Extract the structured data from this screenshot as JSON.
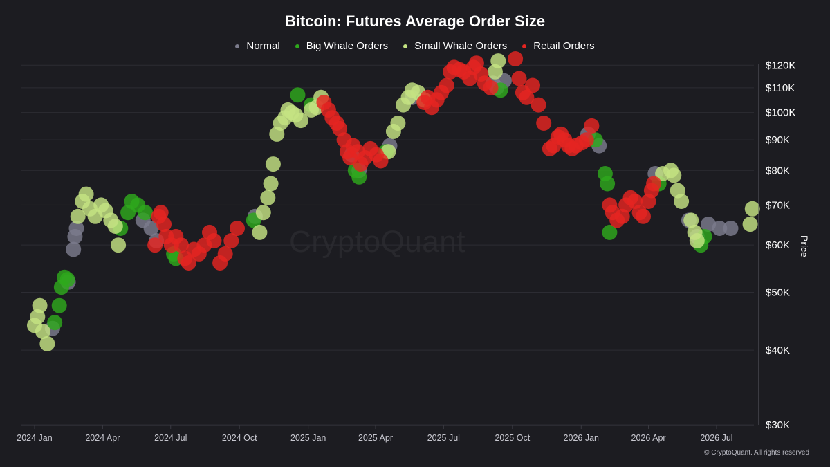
{
  "title": "Bitcoin: Futures Average Order Size",
  "legend": [
    {
      "label": "Normal",
      "color": "#7b7b8c"
    },
    {
      "label": "Big Whale Orders",
      "color": "#2ea81c"
    },
    {
      "label": "Small Whale Orders",
      "color": "#c4e382"
    },
    {
      "label": "Retail Orders",
      "color": "#e52521"
    }
  ],
  "watermark": "CryptoQuant",
  "footer": "© CryptoQuant. All rights reserved",
  "chart_data": {
    "type": "scatter",
    "title": "Bitcoin: Futures Average Order Size",
    "ylabel": "Price",
    "yscale": "log",
    "ylim": [
      30000,
      130000
    ],
    "y_ticks": [
      120000,
      110000,
      100000,
      90000,
      80000,
      70000,
      60000,
      50000,
      40000,
      30000
    ],
    "y_tick_labels": [
      "$120K",
      "$110K",
      "$100K",
      "$90K",
      "$80K",
      "$70K",
      "$60K",
      "$50K",
      "$40K",
      "$30K"
    ],
    "x_tick_labels": [
      "2024 Jan",
      "2024 Apr",
      "2024 Jul",
      "2024 Oct",
      "2025 Jan",
      "2025 Apr",
      "2025 Jul",
      "2025 Oct",
      "2026 Jan",
      "2026 Apr",
      "2026 Jul"
    ],
    "xlim": [
      "2024-01-01",
      "2026-08-20"
    ],
    "grid": true,
    "legend_position": "top-center",
    "series": [
      {
        "name": "Normal",
        "color": "#7b7b8c",
        "points": [
          [
            "2024-01-25",
            43500
          ],
          [
            "2024-02-15",
            52000
          ],
          [
            "2024-02-22",
            59000
          ],
          [
            "2024-02-24",
            62000
          ],
          [
            "2024-02-26",
            64000
          ],
          [
            "2024-05-25",
            66000
          ],
          [
            "2024-06-05",
            64000
          ],
          [
            "2024-06-12",
            61000
          ],
          [
            "2024-10-22",
            67000
          ],
          [
            "2025-02-28",
            85000
          ],
          [
            "2025-03-10",
            80000
          ],
          [
            "2025-04-20",
            88000
          ],
          [
            "2025-05-20",
            106000
          ],
          [
            "2025-09-05",
            112000
          ],
          [
            "2025-09-10",
            110000
          ],
          [
            "2025-09-20",
            113000
          ],
          [
            "2026-01-10",
            92000
          ],
          [
            "2026-01-25",
            88000
          ],
          [
            "2026-04-10",
            79000
          ],
          [
            "2026-05-25",
            66000
          ],
          [
            "2026-06-05",
            62000
          ],
          [
            "2026-06-20",
            65000
          ],
          [
            "2026-07-05",
            64000
          ],
          [
            "2026-07-20",
            64000
          ]
        ]
      },
      {
        "name": "Big Whale Orders",
        "color": "#2ea81c",
        "points": [
          [
            "2024-01-28",
            44500
          ],
          [
            "2024-02-03",
            47500
          ],
          [
            "2024-02-06",
            51000
          ],
          [
            "2024-02-10",
            53000
          ],
          [
            "2024-02-14",
            52500
          ],
          [
            "2024-04-25",
            64000
          ],
          [
            "2024-05-05",
            68000
          ],
          [
            "2024-05-10",
            71000
          ],
          [
            "2024-05-18",
            70000
          ],
          [
            "2024-05-28",
            68000
          ],
          [
            "2024-07-05",
            58000
          ],
          [
            "2024-07-08",
            57000
          ],
          [
            "2024-10-20",
            66000
          ],
          [
            "2024-12-18",
            107000
          ],
          [
            "2025-01-05",
            103000
          ],
          [
            "2025-03-05",
            80000
          ],
          [
            "2025-03-10",
            78000
          ],
          [
            "2025-04-15",
            86000
          ],
          [
            "2025-09-15",
            109000
          ],
          [
            "2026-01-20",
            90000
          ],
          [
            "2026-02-02",
            79000
          ],
          [
            "2026-02-05",
            76000
          ],
          [
            "2026-02-08",
            63000
          ],
          [
            "2026-04-15",
            76000
          ],
          [
            "2026-06-10",
            60000
          ],
          [
            "2026-06-15",
            62000
          ]
        ]
      },
      {
        "name": "Small Whale Orders",
        "color": "#c4e382",
        "points": [
          [
            "2024-01-01",
            44000
          ],
          [
            "2024-01-05",
            45500
          ],
          [
            "2024-01-08",
            47500
          ],
          [
            "2024-01-12",
            43000
          ],
          [
            "2024-01-18",
            41000
          ],
          [
            "2024-02-28",
            67000
          ],
          [
            "2024-03-05",
            71000
          ],
          [
            "2024-03-10",
            73000
          ],
          [
            "2024-03-15",
            69000
          ],
          [
            "2024-03-22",
            67000
          ],
          [
            "2024-03-30",
            70000
          ],
          [
            "2024-04-05",
            68500
          ],
          [
            "2024-04-12",
            66000
          ],
          [
            "2024-04-18",
            64500
          ],
          [
            "2024-04-22",
            60000
          ],
          [
            "2024-10-28",
            63000
          ],
          [
            "2024-11-02",
            68000
          ],
          [
            "2024-11-08",
            72000
          ],
          [
            "2024-11-12",
            76000
          ],
          [
            "2024-11-15",
            82000
          ],
          [
            "2024-11-20",
            92000
          ],
          [
            "2024-11-25",
            96000
          ],
          [
            "2024-12-01",
            98000
          ],
          [
            "2024-12-05",
            101000
          ],
          [
            "2024-12-10",
            100000
          ],
          [
            "2024-12-15",
            99000
          ],
          [
            "2024-12-22",
            97000
          ],
          [
            "2025-01-05",
            101000
          ],
          [
            "2025-01-12",
            102000
          ],
          [
            "2025-01-18",
            106000
          ],
          [
            "2025-04-18",
            86000
          ],
          [
            "2025-04-25",
            93000
          ],
          [
            "2025-05-01",
            96000
          ],
          [
            "2025-05-08",
            103000
          ],
          [
            "2025-05-15",
            106000
          ],
          [
            "2025-05-20",
            109000
          ],
          [
            "2025-05-28",
            108000
          ],
          [
            "2025-06-05",
            105000
          ],
          [
            "2025-09-08",
            117000
          ],
          [
            "2025-09-12",
            122000
          ],
          [
            "2026-04-20",
            79000
          ],
          [
            "2026-05-01",
            80000
          ],
          [
            "2026-05-05",
            78500
          ],
          [
            "2026-05-10",
            74000
          ],
          [
            "2026-05-15",
            71000
          ],
          [
            "2026-05-28",
            66000
          ],
          [
            "2026-06-02",
            63000
          ],
          [
            "2026-06-05",
            61000
          ],
          [
            "2026-08-15",
            65000
          ],
          [
            "2026-08-18",
            69000
          ]
        ]
      },
      {
        "name": "Retail Orders",
        "color": "#e52521",
        "points": [
          [
            "2024-06-10",
            60000
          ],
          [
            "2024-06-15",
            67000
          ],
          [
            "2024-06-18",
            68000
          ],
          [
            "2024-06-22",
            65000
          ],
          [
            "2024-06-25",
            62000
          ],
          [
            "2024-07-02",
            60000
          ],
          [
            "2024-07-08",
            62000
          ],
          [
            "2024-07-15",
            60000
          ],
          [
            "2024-07-20",
            57000
          ],
          [
            "2024-07-25",
            56000
          ],
          [
            "2024-08-01",
            59000
          ],
          [
            "2024-08-08",
            58000
          ],
          [
            "2024-08-15",
            60000
          ],
          [
            "2024-08-22",
            63000
          ],
          [
            "2024-08-28",
            61000
          ],
          [
            "2024-09-05",
            56000
          ],
          [
            "2024-09-12",
            58000
          ],
          [
            "2024-09-20",
            61000
          ],
          [
            "2024-09-28",
            64000
          ],
          [
            "2025-01-22",
            104000
          ],
          [
            "2025-01-28",
            101000
          ],
          [
            "2025-02-02",
            98000
          ],
          [
            "2025-02-08",
            96000
          ],
          [
            "2025-02-12",
            94000
          ],
          [
            "2025-02-18",
            90000
          ],
          [
            "2025-02-22",
            86000
          ],
          [
            "2025-02-26",
            84000
          ],
          [
            "2025-03-02",
            88000
          ],
          [
            "2025-03-08",
            86000
          ],
          [
            "2025-03-12",
            82000
          ],
          [
            "2025-03-18",
            84000
          ],
          [
            "2025-03-25",
            87000
          ],
          [
            "2025-04-02",
            85000
          ],
          [
            "2025-04-08",
            83000
          ],
          [
            "2025-06-05",
            104000
          ],
          [
            "2025-06-10",
            106000
          ],
          [
            "2025-06-15",
            102000
          ],
          [
            "2025-06-22",
            105000
          ],
          [
            "2025-06-28",
            108000
          ],
          [
            "2025-07-05",
            111000
          ],
          [
            "2025-07-10",
            117000
          ],
          [
            "2025-07-15",
            119000
          ],
          [
            "2025-07-22",
            118000
          ],
          [
            "2025-07-28",
            117000
          ],
          [
            "2025-08-05",
            114000
          ],
          [
            "2025-08-10",
            119000
          ],
          [
            "2025-08-14",
            121000
          ],
          [
            "2025-08-20",
            116000
          ],
          [
            "2025-08-25",
            112000
          ],
          [
            "2025-09-02",
            110000
          ],
          [
            "2025-10-05",
            123000
          ],
          [
            "2025-10-10",
            114000
          ],
          [
            "2025-10-15",
            108000
          ],
          [
            "2025-10-20",
            106000
          ],
          [
            "2025-10-28",
            111000
          ],
          [
            "2025-11-05",
            103000
          ],
          [
            "2025-11-12",
            96000
          ],
          [
            "2025-11-20",
            87000
          ],
          [
            "2025-11-25",
            88000
          ],
          [
            "2025-12-01",
            91000
          ],
          [
            "2025-12-05",
            92000
          ],
          [
            "2025-12-10",
            90000
          ],
          [
            "2025-12-15",
            88000
          ],
          [
            "2025-12-20",
            87000
          ],
          [
            "2025-12-25",
            88000
          ],
          [
            "2026-01-02",
            89000
          ],
          [
            "2026-01-08",
            90000
          ],
          [
            "2026-01-15",
            95000
          ],
          [
            "2026-02-08",
            70000
          ],
          [
            "2026-02-12",
            68000
          ],
          [
            "2026-02-18",
            66000
          ],
          [
            "2026-02-25",
            67000
          ],
          [
            "2026-03-02",
            70000
          ],
          [
            "2026-03-08",
            72000
          ],
          [
            "2026-03-14",
            71000
          ],
          [
            "2026-03-20",
            68000
          ],
          [
            "2026-03-25",
            67000
          ],
          [
            "2026-04-01",
            71000
          ],
          [
            "2026-04-05",
            74000
          ],
          [
            "2026-04-08",
            76000
          ]
        ]
      }
    ]
  }
}
